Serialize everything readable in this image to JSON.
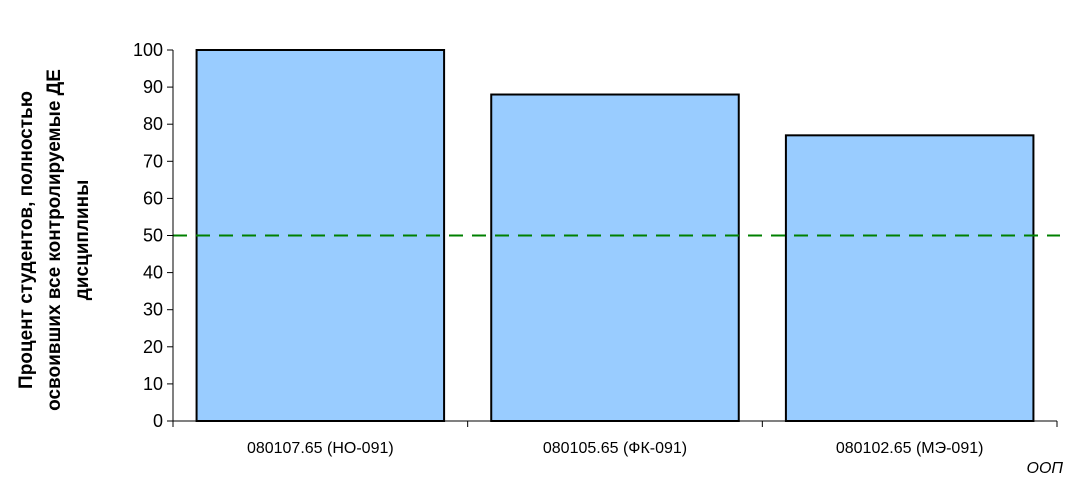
{
  "chart_data": {
    "type": "bar",
    "categories": [
      "080107.65 (НО-091)",
      "080105.65 (ФК-091)",
      "080102.65 (МЭ-091)"
    ],
    "values": [
      100,
      88,
      77
    ],
    "title": "",
    "xlabel": "ООП",
    "ylabel_lines": [
      "Процент студентов, полностью",
      "освоивших  все контролируемые ДЕ",
      "дисциплины"
    ],
    "ylim": [
      0,
      100
    ],
    "yticks": [
      0,
      10,
      20,
      30,
      40,
      50,
      60,
      70,
      80,
      90,
      100
    ],
    "threshold": 50,
    "grid": false,
    "legend": "none",
    "colors": {
      "bar_fill": "#99ccff",
      "bar_stroke": "#000000",
      "threshold_line": "#008000",
      "axis": "#000000"
    }
  }
}
